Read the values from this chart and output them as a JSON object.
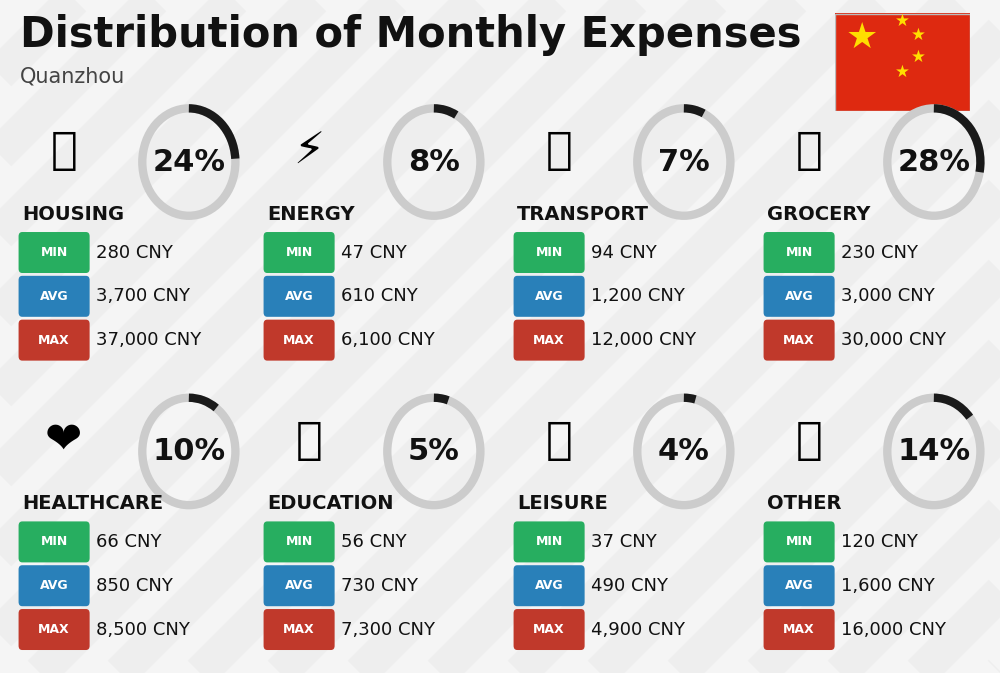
{
  "title": "Distribution of Monthly Expenses",
  "subtitle": "Quanzhou",
  "background_color": "#f5f5f5",
  "categories": [
    {
      "name": "HOUSING",
      "percent": 24,
      "icon": "🏗",
      "min_val": "280 CNY",
      "avg_val": "3,700 CNY",
      "max_val": "37,000 CNY"
    },
    {
      "name": "ENERGY",
      "percent": 8,
      "icon": "⚡",
      "min_val": "47 CNY",
      "avg_val": "610 CNY",
      "max_val": "6,100 CNY"
    },
    {
      "name": "TRANSPORT",
      "percent": 7,
      "icon": "🚌",
      "min_val": "94 CNY",
      "avg_val": "1,200 CNY",
      "max_val": "12,000 CNY"
    },
    {
      "name": "GROCERY",
      "percent": 28,
      "icon": "🛒",
      "min_val": "230 CNY",
      "avg_val": "3,000 CNY",
      "max_val": "30,000 CNY"
    },
    {
      "name": "HEALTHCARE",
      "percent": 10,
      "icon": "❤️",
      "min_val": "66 CNY",
      "avg_val": "850 CNY",
      "max_val": "8,500 CNY"
    },
    {
      "name": "EDUCATION",
      "percent": 5,
      "icon": "🎓",
      "min_val": "56 CNY",
      "avg_val": "730 CNY",
      "max_val": "7,300 CNY"
    },
    {
      "name": "LEISURE",
      "percent": 4,
      "icon": "🛍️",
      "min_val": "37 CNY",
      "avg_val": "490 CNY",
      "max_val": "4,900 CNY"
    },
    {
      "name": "OTHER",
      "percent": 14,
      "icon": "💼",
      "min_val": "120 CNY",
      "avg_val": "1,600 CNY",
      "max_val": "16,000 CNY"
    }
  ],
  "color_min": "#27ae60",
  "color_avg": "#2980b9",
  "color_max": "#c0392b",
  "color_dark_arc": "#1a1a1a",
  "color_light_arc": "#cccccc",
  "arc_linewidth": 6,
  "title_fontsize": 30,
  "subtitle_fontsize": 15,
  "percent_fontsize": 22,
  "category_fontsize": 14,
  "value_fontsize": 13,
  "badge_label_fontsize": 9,
  "flag_color": "#DE2910",
  "flag_star_color": "#FFDE00"
}
